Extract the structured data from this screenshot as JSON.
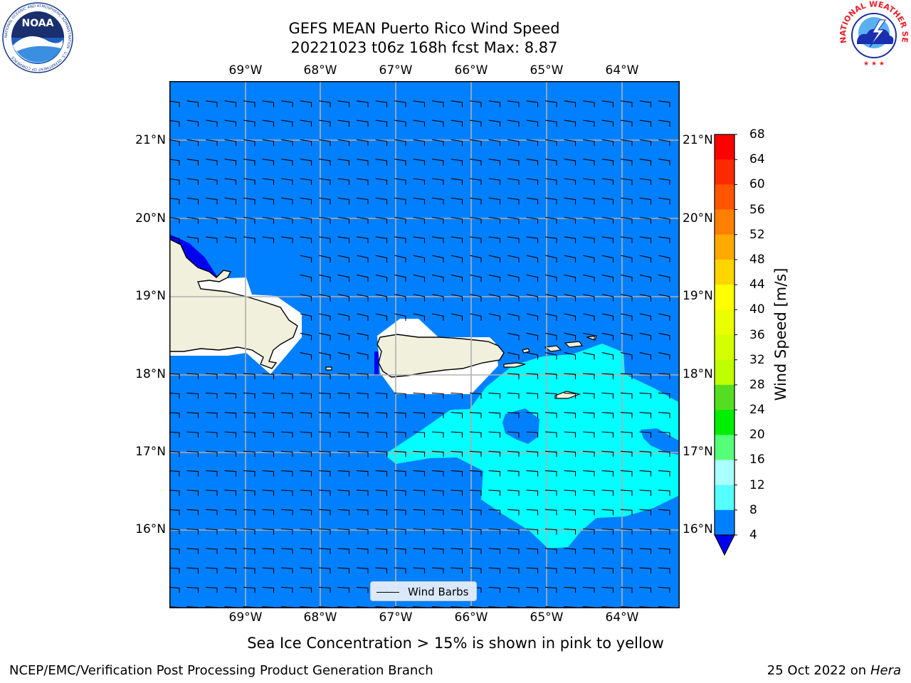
{
  "header": {
    "title_line1": "GEFS MEAN Puerto Rico Wind Speed",
    "title_line2": "20221023 t06z 168h fcst   Max: 8.87"
  },
  "map": {
    "lon_labels": [
      "69°W",
      "68°W",
      "67°W",
      "66°W",
      "65°W",
      "64°W"
    ],
    "lat_labels": [
      "21°N",
      "20°N",
      "19°N",
      "18°N",
      "17°N",
      "16°N"
    ],
    "ocean_color": "#0080ff",
    "land_color": "#f0f0dc",
    "fill_8_12_color": "#00ffff",
    "fill_below_4_color": "#0000ee"
  },
  "legend": {
    "label": "Wind Barbs"
  },
  "colorbar": {
    "label": "Wind Speed [m/s]",
    "ticks": [
      "68",
      "64",
      "60",
      "56",
      "52",
      "48",
      "44",
      "40",
      "36",
      "32",
      "28",
      "24",
      "20",
      "16",
      "12",
      "8",
      "4"
    ],
    "colors": [
      "#ff0000",
      "#ff2a00",
      "#ff5500",
      "#ff8000",
      "#ffaa00",
      "#ffd500",
      "#ffff00",
      "#eaff00",
      "#d4ff00",
      "#bfff00",
      "#55dd22",
      "#00ee00",
      "#55ff77",
      "#aaffff",
      "#55ffff",
      "#00ffff",
      "#0080ff"
    ],
    "extend_color": "#0000ee"
  },
  "subtitle": "Sea Ice Concentration > 15% is shown in pink to yellow",
  "footer": {
    "left": "NCEP/EMC/Verification Post Processing Product Generation Branch",
    "right_date": "25 Oct 2022 on ",
    "right_machine": "Hera"
  },
  "logos": {
    "noaa_text": "NOAA",
    "noaa_ring": "NATIONAL OCEANIC AND ATMOSPHERIC ADMINISTRATION · U.S. DEPARTMENT OF COMMERCE",
    "nws_ring": "NATIONAL WEATHER SERVICE"
  }
}
